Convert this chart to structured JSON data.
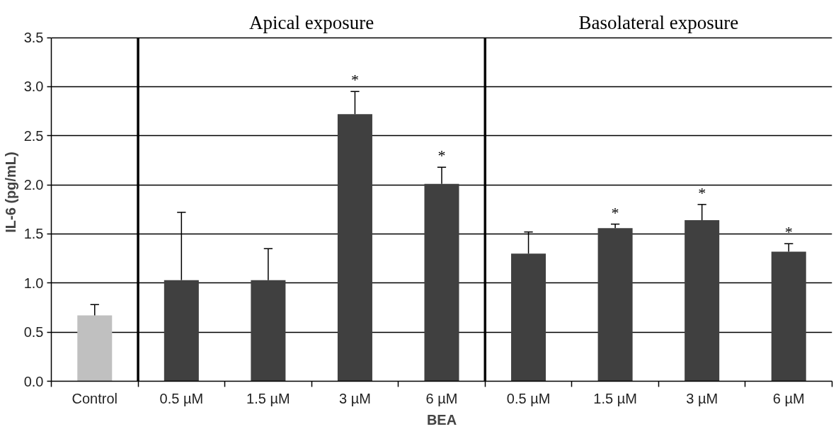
{
  "chart_data": {
    "type": "bar",
    "xlabel": "BEA",
    "ylabel": "IL-6 (pg/mL)",
    "categories": [
      "Control",
      "0.5 µM",
      "1.5 µM",
      "3 µM",
      "6 µM",
      "0.5 µM",
      "1.5 µM",
      "3 µM",
      "6 µM"
    ],
    "values": [
      0.67,
      1.03,
      1.03,
      2.72,
      2.01,
      1.3,
      1.56,
      1.64,
      1.32
    ],
    "colors": [
      "#c0c0c0",
      "#404040",
      "#404040",
      "#404040",
      "#404040",
      "#404040",
      "#404040",
      "#404040",
      "#404040"
    ],
    "errors": [
      [
        0.67,
        0.78
      ],
      [
        1.03,
        1.72
      ],
      [
        1.03,
        1.35
      ],
      [
        2.72,
        2.95
      ],
      [
        2.01,
        2.18
      ],
      [
        1.3,
        1.52
      ],
      [
        1.56,
        1.6
      ],
      [
        1.64,
        1.8
      ],
      [
        1.32,
        1.4
      ]
    ],
    "value_labels": [
      null,
      null,
      null,
      "*",
      "*",
      null,
      "*",
      "*",
      "*"
    ],
    "ylim": [
      0,
      3.5
    ],
    "yticks": [
      {
        "value": 0,
        "label": "0.0"
      },
      {
        "value": 0.5,
        "label": "0.5"
      },
      {
        "value": 1,
        "label": "1.0"
      },
      {
        "value": 1.5,
        "label": "1.5"
      },
      {
        "value": 2,
        "label": "2.0"
      },
      {
        "value": 2.5,
        "label": "2.5"
      },
      {
        "value": 3,
        "label": "3.0"
      },
      {
        "value": 3.5,
        "label": "3.5"
      }
    ],
    "grid": "y",
    "annotations": [
      "Apical exposure",
      "Basolateral exposure"
    ]
  }
}
